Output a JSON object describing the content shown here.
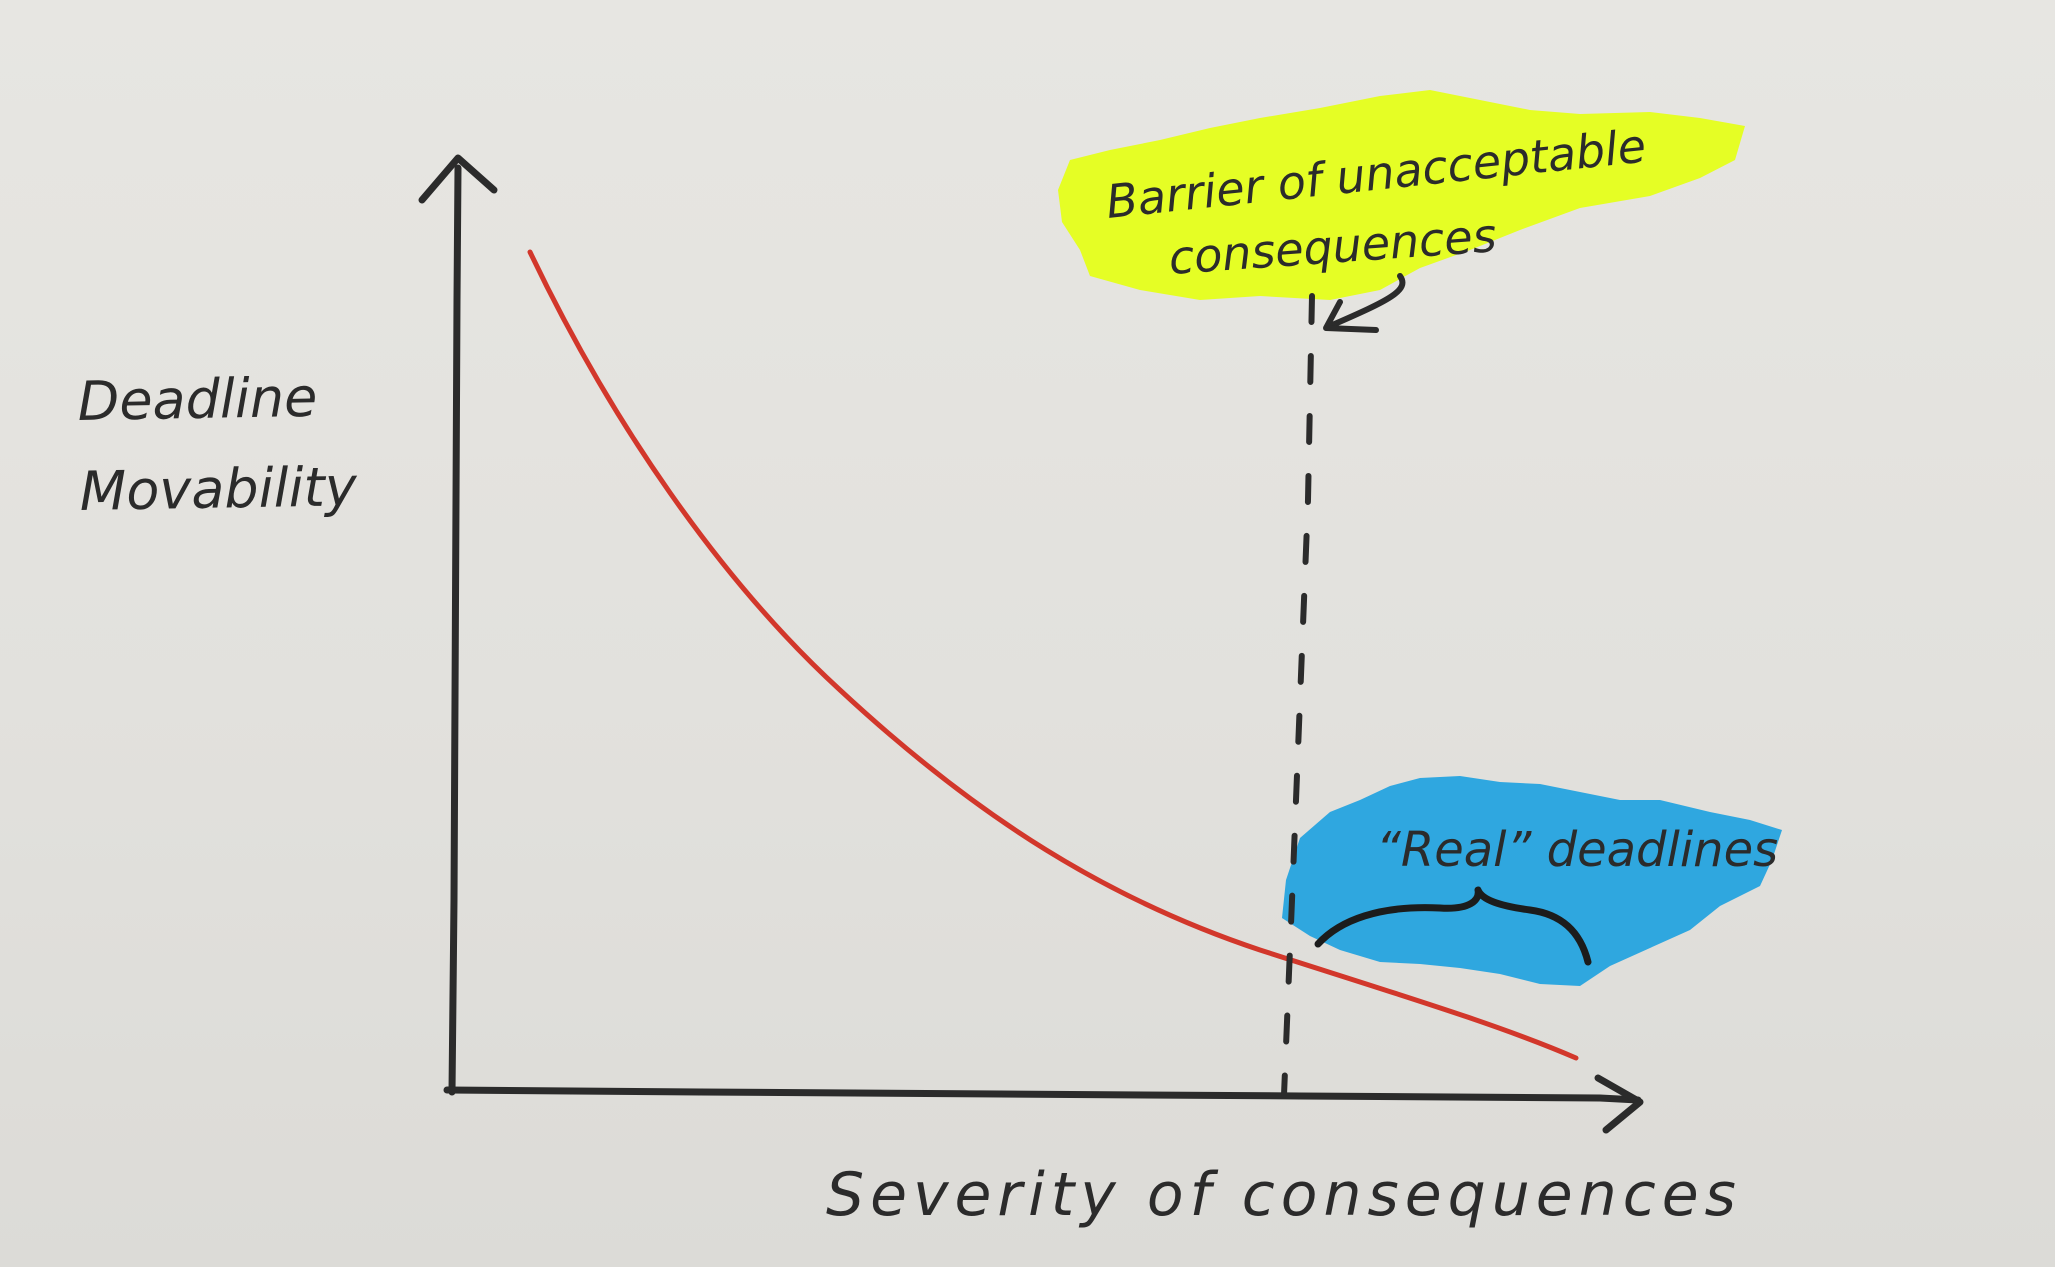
{
  "diagram": {
    "y_axis_label_line1": "Deadline",
    "y_axis_label_line2": "Movability",
    "x_axis_label": "Severity of consequences",
    "barrier_label_line1": "Barrier of unacceptable",
    "barrier_label_line2": "consequences",
    "region_label": "“Real” deadlines"
  },
  "colors": {
    "paper": "#e4e3df",
    "ink": "#2b2b2b",
    "curve": "#d2372b",
    "highlight_yellow": "#e5ff1a",
    "highlight_blue": "#1fa2e0"
  }
}
